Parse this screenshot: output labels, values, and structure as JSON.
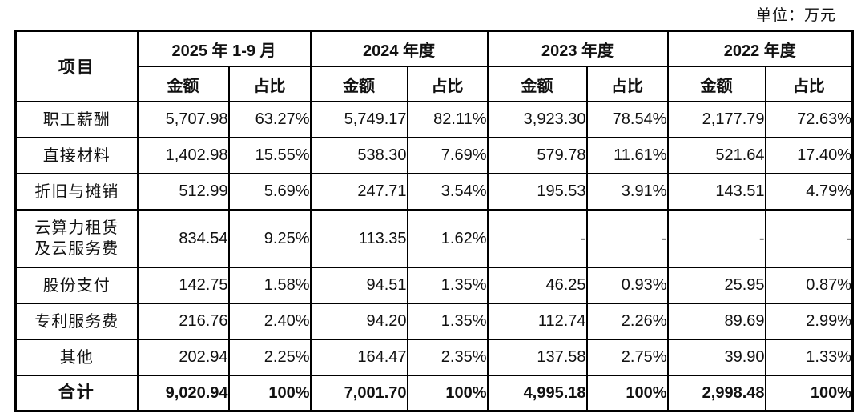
{
  "unit_label": "单位：万元",
  "table": {
    "item_header": "项目",
    "period_headers": [
      "2025 年 1-9 月",
      "2024 年度",
      "2023 年度",
      "2022 年度"
    ],
    "sub_headers": {
      "amount": "金额",
      "ratio": "占比"
    },
    "rows": [
      {
        "label": "职工薪酬",
        "cells": [
          "5,707.98",
          "63.27%",
          "5,749.17",
          "82.11%",
          "3,923.30",
          "78.54%",
          "2,177.79",
          "72.63%"
        ]
      },
      {
        "label": "直接材料",
        "cells": [
          "1,402.98",
          "15.55%",
          "538.30",
          "7.69%",
          "579.78",
          "11.61%",
          "521.64",
          "17.40%"
        ]
      },
      {
        "label": "折旧与摊销",
        "cells": [
          "512.99",
          "5.69%",
          "247.71",
          "3.54%",
          "195.53",
          "3.91%",
          "143.51",
          "4.79%"
        ]
      },
      {
        "label": "云算力租赁\n及云服务费",
        "tall": true,
        "cells": [
          "834.54",
          "9.25%",
          "113.35",
          "1.62%",
          "-",
          "-",
          "-",
          "-"
        ]
      },
      {
        "label": "股份支付",
        "cells": [
          "142.75",
          "1.58%",
          "94.51",
          "1.35%",
          "46.25",
          "0.93%",
          "25.95",
          "0.87%"
        ]
      },
      {
        "label": "专利服务费",
        "cells": [
          "216.76",
          "2.40%",
          "94.20",
          "1.35%",
          "112.74",
          "2.26%",
          "89.69",
          "2.99%"
        ]
      },
      {
        "label": "其他",
        "cells": [
          "202.94",
          "2.25%",
          "164.47",
          "2.35%",
          "137.58",
          "2.75%",
          "39.90",
          "1.33%"
        ]
      }
    ],
    "total_row": {
      "label": "合计",
      "cells": [
        "9,020.94",
        "100%",
        "7,001.70",
        "100%",
        "4,995.18",
        "100%",
        "2,998.48",
        "100%"
      ]
    }
  }
}
